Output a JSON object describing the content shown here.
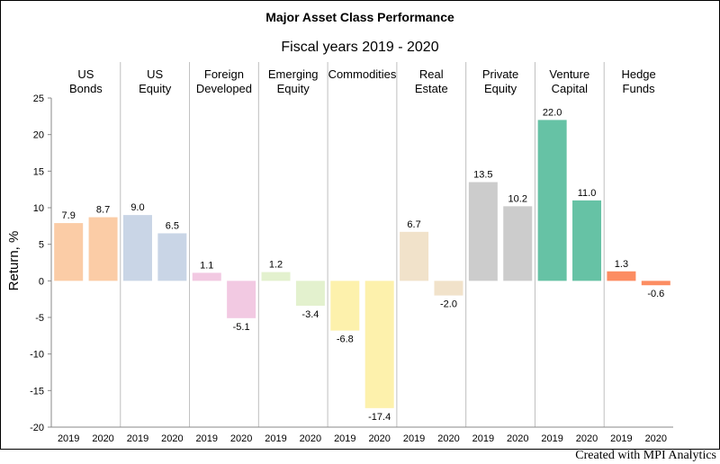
{
  "chart_data": {
    "type": "bar",
    "title": "Major Asset Class Performance",
    "subtitle": "Fiscal years 2019 - 2020",
    "ylabel": "Return, %",
    "ylim": [
      -20,
      25
    ],
    "yticks": [
      -20,
      -15,
      -10,
      -5,
      0,
      5,
      10,
      15,
      20,
      25
    ],
    "x_sub_categories": [
      "2019",
      "2020"
    ],
    "grid": false,
    "groups": [
      {
        "label": [
          "US",
          "Bonds"
        ],
        "values": [
          7.9,
          8.7
        ],
        "labels": [
          "7.9",
          "8.7"
        ],
        "color": "#FBCCA6"
      },
      {
        "label": [
          "US",
          "Equity"
        ],
        "values": [
          9.0,
          6.5
        ],
        "labels": [
          "9.0",
          "6.5"
        ],
        "color": "#C9D5E6"
      },
      {
        "label": [
          "Foreign",
          "Developed"
        ],
        "values": [
          1.1,
          -5.1
        ],
        "labels": [
          "1.1",
          "-5.1"
        ],
        "color": "#F2C9E2"
      },
      {
        "label": [
          "Emerging",
          "Equity"
        ],
        "values": [
          1.2,
          -3.4
        ],
        "labels": [
          "1.2",
          "-3.4"
        ],
        "color": "#E3F1CE"
      },
      {
        "label": [
          "Commodities"
        ],
        "values": [
          -6.8,
          -17.4
        ],
        "labels": [
          "-6.8",
          "-17.4"
        ],
        "color": "#FDF1AC"
      },
      {
        "label": [
          "Real",
          "Estate"
        ],
        "values": [
          6.7,
          -2.0
        ],
        "labels": [
          "6.7",
          "-2.0"
        ],
        "color": "#F1E2CA"
      },
      {
        "label": [
          "Private",
          "Equity"
        ],
        "values": [
          13.5,
          10.2
        ],
        "labels": [
          "13.5",
          "10.2"
        ],
        "color": "#CCCCCC"
      },
      {
        "label": [
          "Venture",
          "Capital"
        ],
        "values": [
          22.0,
          11.0
        ],
        "labels": [
          "22.0",
          "11.0"
        ],
        "color": "#66C2A5"
      },
      {
        "label": [
          "Hedge",
          "Funds"
        ],
        "values": [
          1.3,
          -0.6
        ],
        "labels": [
          "1.3",
          "-0.6"
        ],
        "color": "#FC8D62"
      }
    ]
  },
  "footer": {
    "credit": "Created with MPI Analytics"
  }
}
